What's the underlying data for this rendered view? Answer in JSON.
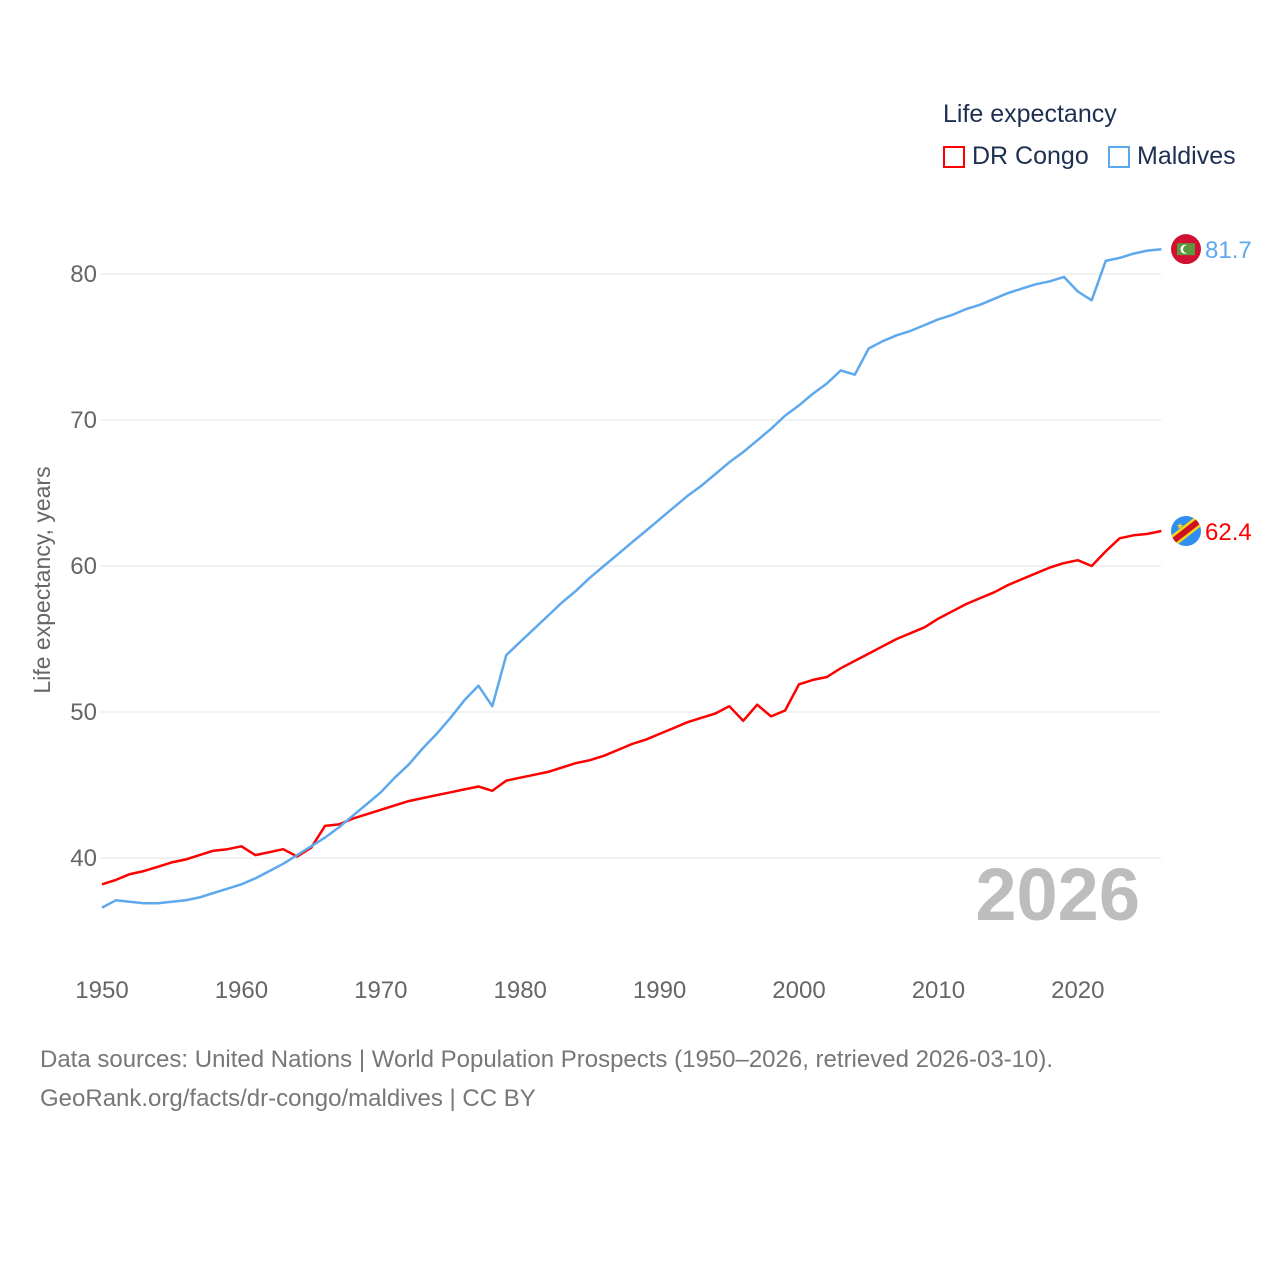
{
  "chart_data": {
    "type": "line",
    "title": "Life expectancy",
    "ylabel": "Life expectancy, years",
    "xlabel": "",
    "xlim": [
      1950,
      2026
    ],
    "ylim": [
      36,
      84
    ],
    "x_ticks": [
      "1950",
      "1960",
      "1970",
      "1980",
      "1990",
      "2000",
      "2010",
      "2020"
    ],
    "y_ticks": [
      "40",
      "50",
      "60",
      "70",
      "80"
    ],
    "grid": true,
    "legend_position": "top-right",
    "year_label": "2026",
    "x_start": 1950,
    "series": [
      {
        "name": "DR Congo",
        "color": "#ff0000",
        "end_label": "62.4",
        "values": [
          38.2,
          38.5,
          38.9,
          39.1,
          39.4,
          39.7,
          39.9,
          40.2,
          40.5,
          40.6,
          40.8,
          40.2,
          40.4,
          40.6,
          40.1,
          40.7,
          42.2,
          42.3,
          42.7,
          43.0,
          43.3,
          43.6,
          43.9,
          44.1,
          44.3,
          44.5,
          44.7,
          44.9,
          44.6,
          45.3,
          45.5,
          45.7,
          45.9,
          46.2,
          46.5,
          46.7,
          47.0,
          47.4,
          47.8,
          48.1,
          48.5,
          48.9,
          49.3,
          49.6,
          49.9,
          50.4,
          49.4,
          50.5,
          49.7,
          50.1,
          51.9,
          52.2,
          52.4,
          53.0,
          53.5,
          54.0,
          54.5,
          55.0,
          55.4,
          55.8,
          56.4,
          56.9,
          57.4,
          57.8,
          58.2,
          58.7,
          59.1,
          59.5,
          59.9,
          60.2,
          60.4,
          60.0,
          61.0,
          61.9,
          62.1,
          62.2,
          62.4
        ]
      },
      {
        "name": "Maldives",
        "color": "#5ea8ee",
        "end_label": "81.7",
        "values": [
          36.6,
          37.1,
          37.0,
          36.9,
          36.9,
          37.0,
          37.1,
          37.3,
          37.6,
          37.9,
          38.2,
          38.6,
          39.1,
          39.6,
          40.2,
          40.8,
          41.4,
          42.1,
          42.9,
          43.7,
          44.5,
          45.5,
          46.4,
          47.5,
          48.5,
          49.6,
          50.8,
          51.8,
          50.4,
          53.9,
          54.8,
          55.7,
          56.6,
          57.5,
          58.3,
          59.2,
          60.0,
          60.8,
          61.6,
          62.4,
          63.2,
          64.0,
          64.8,
          65.5,
          66.3,
          67.1,
          67.8,
          68.6,
          69.4,
          70.3,
          71.0,
          71.8,
          72.5,
          73.4,
          73.1,
          74.9,
          75.4,
          75.8,
          76.1,
          76.5,
          76.9,
          77.2,
          77.6,
          77.9,
          78.3,
          78.7,
          79.0,
          79.3,
          79.5,
          79.8,
          78.8,
          78.2,
          80.9,
          81.1,
          81.4,
          81.6,
          81.7
        ]
      }
    ]
  },
  "source": {
    "line1": "Data sources: United Nations | World Population Prospects (1950–2026, retrieved 2026-03-10).",
    "line2": "GeoRank.org/facts/dr-congo/maldives | CC BY"
  }
}
